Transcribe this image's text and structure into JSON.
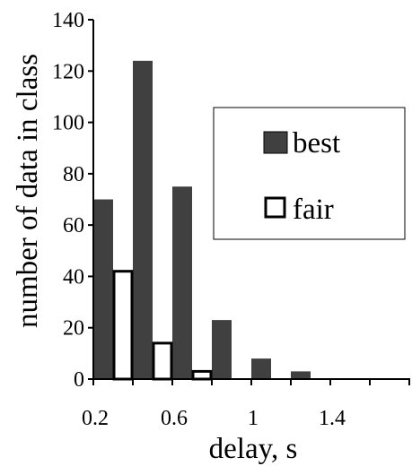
{
  "chart_data": {
    "type": "bar",
    "xlabel": "delay, s",
    "ylabel": "number of data in class",
    "categories": [
      0.2,
      0.4,
      0.6,
      0.8,
      1.0,
      1.2,
      1.4,
      1.6,
      1.8
    ],
    "ylim": [
      0,
      140
    ],
    "yticks": [
      "0",
      "20",
      "40",
      "60",
      "80",
      "100",
      "120",
      "140"
    ],
    "xtick_labels": [
      {
        "value": 0.2,
        "label": "0.2"
      },
      {
        "value": 0.6,
        "label": "0.6"
      },
      {
        "value": 1.0,
        "label": "1"
      },
      {
        "value": 1.4,
        "label": "1.4"
      }
    ],
    "legend_position": "center-right",
    "grid": false,
    "series": [
      {
        "name": "best",
        "color": "#404040",
        "values": [
          70,
          124,
          75,
          23,
          8,
          3,
          0,
          0,
          0
        ]
      },
      {
        "name": "fair",
        "color": "#ffffff",
        "values": [
          42,
          14,
          3,
          0,
          0,
          0,
          0,
          0,
          0
        ]
      }
    ]
  }
}
